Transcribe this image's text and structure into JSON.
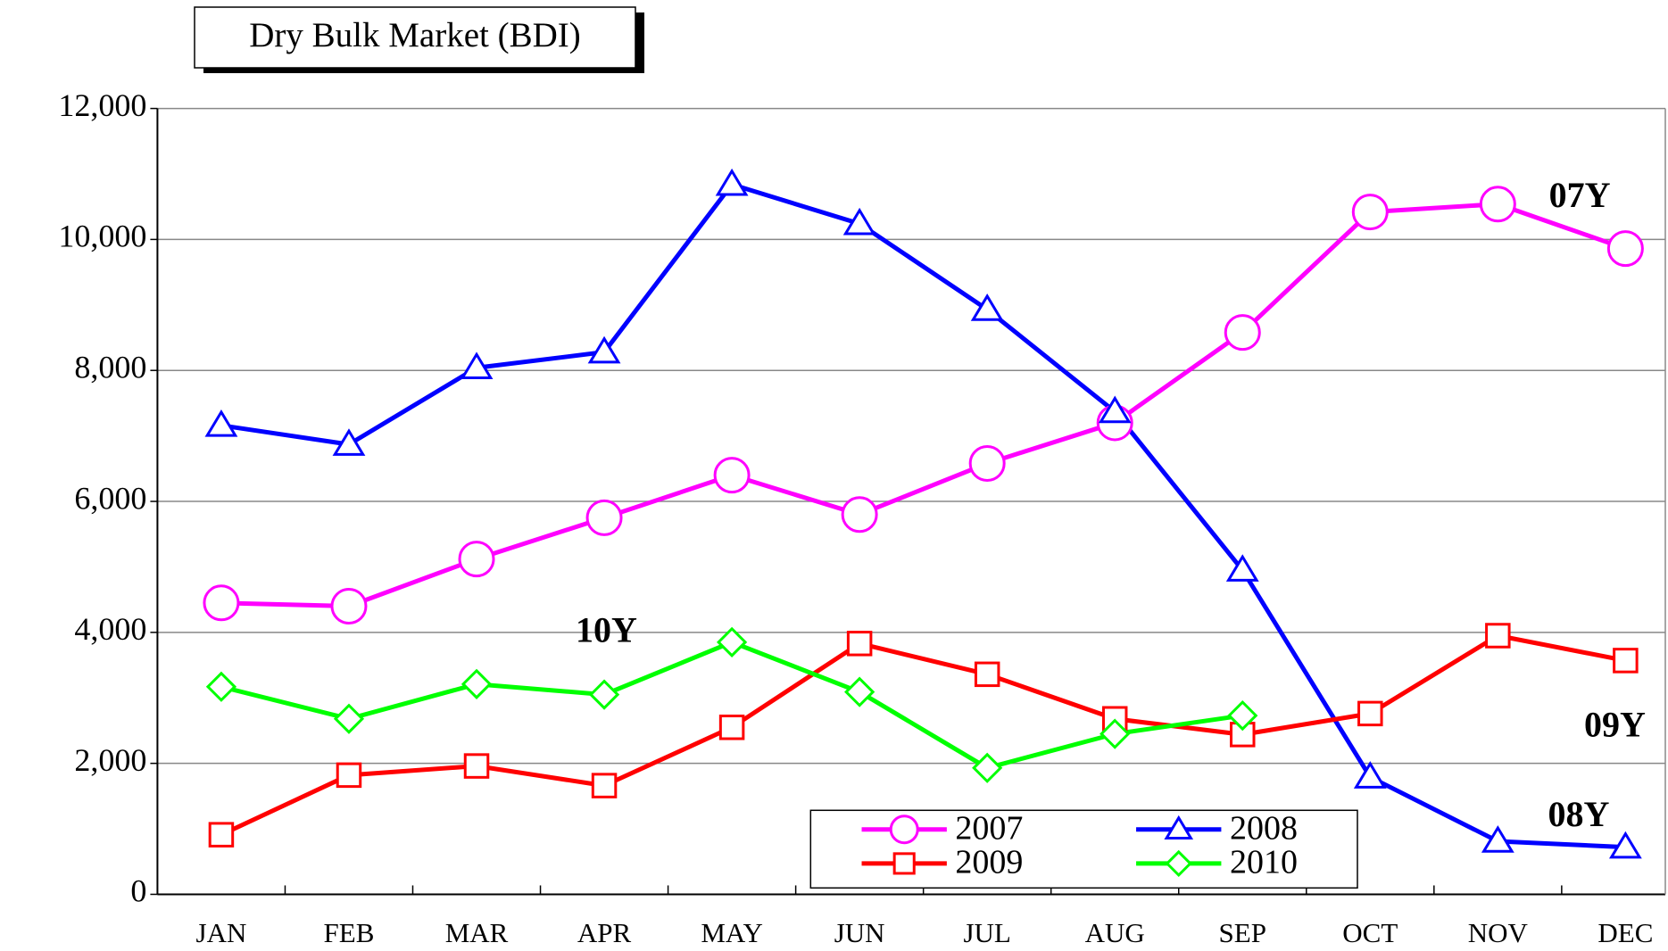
{
  "chart_data": {
    "type": "line",
    "title": "Dry Bulk Market (BDI)",
    "categories": [
      "JAN",
      "FEB",
      "MAR",
      "APR",
      "MAY",
      "JUN",
      "JUL",
      "AUG",
      "SEP",
      "OCT",
      "NOV",
      "DEC"
    ],
    "series": [
      {
        "name": "2007",
        "color": "#ff00ff",
        "marker": "circle",
        "values": [
          4450,
          4400,
          5120,
          5750,
          6400,
          5800,
          6580,
          7200,
          8580,
          10420,
          10540,
          9860
        ]
      },
      {
        "name": "2008",
        "color": "#0000ff",
        "marker": "triangle",
        "values": [
          7160,
          6870,
          8040,
          8280,
          10840,
          10240,
          8930,
          7370,
          4950,
          1790,
          810,
          720
        ]
      },
      {
        "name": "2009",
        "color": "#ff0000",
        "marker": "square",
        "values": [
          910,
          1820,
          1960,
          1660,
          2550,
          3830,
          3360,
          2680,
          2440,
          2760,
          3950,
          3570
        ]
      },
      {
        "name": "2010",
        "color": "#00ff00",
        "marker": "diamond",
        "values": [
          3170,
          2680,
          3210,
          3050,
          3850,
          3090,
          1930,
          2450,
          2730,
          null,
          null,
          null
        ]
      }
    ],
    "annotations": [
      "07Y",
      "10Y",
      "09Y",
      "08Y"
    ],
    "ylim": [
      0,
      12000
    ],
    "yticks": [
      0,
      {
        "value": 2000,
        "label": "2,000"
      },
      {
        "value": 4000,
        "label": "4,000"
      },
      {
        "value": 6000,
        "label": "6,000"
      },
      {
        "value": 8000,
        "label": "8,000"
      },
      {
        "value": 10000,
        "label": "10,000"
      },
      {
        "value": 12000,
        "label": "12,000"
      }
    ],
    "grid": true,
    "legend": "bottom-right"
  }
}
